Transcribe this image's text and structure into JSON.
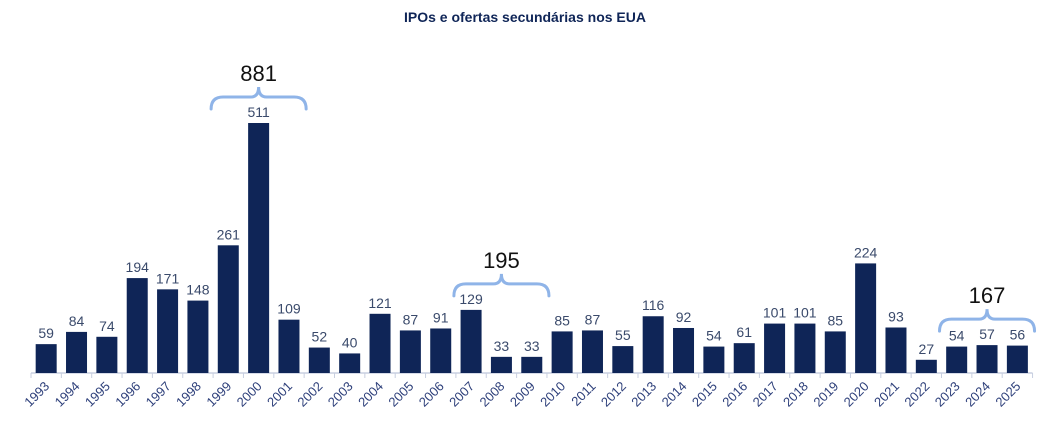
{
  "chart_data": {
    "type": "bar",
    "title": "IPOs e ofertas secundárias nos EUA",
    "xlabel": "",
    "ylabel": "",
    "grid": false,
    "legend": "none",
    "categories": [
      "1993",
      "1994",
      "1995",
      "1996",
      "1997",
      "1998",
      "1999",
      "2000",
      "2001",
      "2002",
      "2003",
      "2004",
      "2005",
      "2006",
      "2007",
      "2008",
      "2009",
      "2010",
      "2011",
      "2012",
      "2013",
      "2014",
      "2015",
      "2016",
      "2017",
      "2018",
      "2019",
      "2020",
      "2021",
      "2022",
      "2023",
      "2024",
      "2025"
    ],
    "values": [
      59,
      84,
      74,
      194,
      171,
      148,
      261,
      511,
      109,
      52,
      40,
      121,
      87,
      91,
      129,
      33,
      33,
      85,
      87,
      55,
      116,
      92,
      54,
      61,
      101,
      101,
      85,
      224,
      93,
      27,
      54,
      57,
      56
    ],
    "ylim": [
      0,
      520
    ],
    "annotations": [
      {
        "label": "881",
        "from": "1999",
        "to": "2001"
      },
      {
        "label": "195",
        "from": "2007",
        "to": "2009"
      },
      {
        "label": "167",
        "from": "2023",
        "to": "2025"
      }
    ],
    "colors": {
      "bar": "#0f2557",
      "brace": "#8fb4e8",
      "label": "#3a4a6b",
      "axis": "#c8cfe0",
      "tick_label": "#2d3f7a",
      "annotation": "#111111"
    }
  }
}
